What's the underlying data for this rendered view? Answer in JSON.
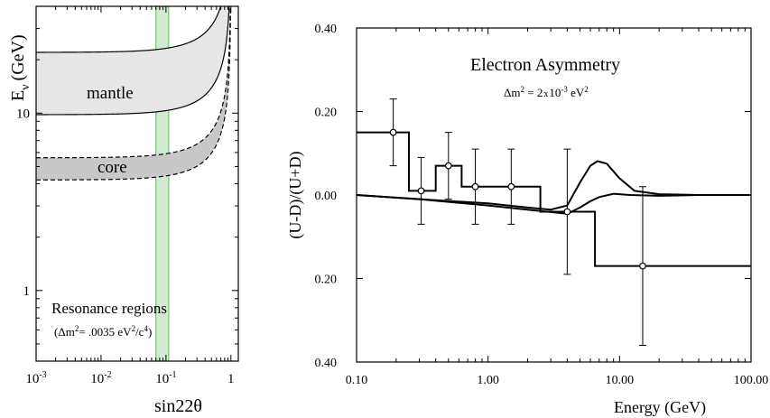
{
  "chart_data": [
    {
      "type": "area",
      "xlabel": "sin22θ",
      "ylabel_main": "E",
      "ylabel_sub": "ν",
      "ylabel_unit": "(GeV)",
      "xscale": "log",
      "yscale": "log",
      "xlim": [
        0.001,
        1.3
      ],
      "ylim": [
        0.4,
        40
      ],
      "x_ticks": [
        {
          "value": 0.001,
          "mantissa": "10",
          "exp": "-3"
        },
        {
          "value": 0.01,
          "mantissa": "10",
          "exp": "-2"
        },
        {
          "value": 0.1,
          "mantissa": "10",
          "exp": "-1"
        },
        {
          "value": 1,
          "mantissa": "1",
          "exp": ""
        }
      ],
      "y_ticks": [
        {
          "value": 1,
          "label": "1"
        },
        {
          "value": 10,
          "label": "10"
        }
      ],
      "bands": [
        {
          "name": "mantle",
          "upper_plateau": 22,
          "lower_plateau": 9.8,
          "style": "solid",
          "fill": "#e6e6e6"
        },
        {
          "name": "core",
          "upper_plateau": 5.6,
          "lower_plateau": 4.2,
          "style": "dashed",
          "fill": "#c8c8c8"
        }
      ],
      "highlight": {
        "x_from": 0.07,
        "x_to": 0.11,
        "color": "#7dc47d"
      },
      "annotation_title": "Resonance regions",
      "annotation_formula": {
        "open": "(Δm",
        "sup1": "2",
        "mid": "= .0035 eV",
        "sup2": "2",
        "div": "/c",
        "sup3": "4",
        "close": ")"
      }
    },
    {
      "type": "line",
      "title": "Electron Asymmetry",
      "subtitle": {
        "lead": "Δm",
        "sup1": "2",
        "mid": " = 2",
        "times": "x",
        "mant": "10",
        "sup2": "-3",
        "unit": " eV",
        "sup3": "2"
      },
      "xlabel": "Energy (GeV)",
      "ylabel": "(U-D)/(U+D)",
      "xscale": "log",
      "xlim": [
        0.1,
        100
      ],
      "ylim": [
        -0.4,
        0.4
      ],
      "x_ticks": [
        {
          "value": 0.1,
          "label": "0.10"
        },
        {
          "value": 1,
          "label": "1.00"
        },
        {
          "value": 10,
          "label": "10.00"
        },
        {
          "value": 100,
          "label": "100.00"
        }
      ],
      "y_ticks": [
        {
          "value": 0.4,
          "label": "0.40"
        },
        {
          "value": 0.2,
          "label": "0.20"
        },
        {
          "value": 0.0,
          "label": "0.00"
        },
        {
          "value": -0.2,
          "label": "0.20"
        },
        {
          "value": -0.4,
          "label": "0.40"
        }
      ],
      "points": [
        {
          "x": 0.19,
          "y": 0.15,
          "err": 0.08
        },
        {
          "x": 0.31,
          "y": 0.01,
          "err": 0.08
        },
        {
          "x": 0.5,
          "y": 0.07,
          "err": 0.08
        },
        {
          "x": 0.8,
          "y": 0.02,
          "err": 0.09
        },
        {
          "x": 1.5,
          "y": 0.02,
          "err": 0.09
        },
        {
          "x": 4.0,
          "y": -0.04,
          "err": 0.15
        },
        {
          "x": 15.0,
          "y": -0.17,
          "err": 0.19
        }
      ],
      "step_histogram": [
        {
          "x0": 0.1,
          "x1": 0.25,
          "y": 0.15
        },
        {
          "x0": 0.25,
          "x1": 0.4,
          "y": 0.01
        },
        {
          "x0": 0.4,
          "x1": 0.63,
          "y": 0.07
        },
        {
          "x0": 0.63,
          "x1": 1.0,
          "y": 0.02
        },
        {
          "x0": 1.0,
          "x1": 2.5,
          "y": 0.02
        },
        {
          "x0": 2.5,
          "x1": 6.5,
          "y": -0.04
        },
        {
          "x0": 6.5,
          "x1": 100,
          "y": -0.17
        }
      ],
      "curves": [
        {
          "name": "",
          "points": [
            [
              0.1,
              0.0
            ],
            [
              0.3,
              -0.01
            ],
            [
              1,
              -0.02
            ],
            [
              2,
              -0.03
            ],
            [
              3,
              -0.035
            ],
            [
              4,
              -0.025
            ],
            [
              5,
              0.03
            ],
            [
              6,
              0.07
            ],
            [
              6.8,
              0.081
            ],
            [
              8,
              0.075
            ],
            [
              10,
              0.04
            ],
            [
              13,
              0.01
            ],
            [
              20,
              0.002
            ],
            [
              40,
              0.0
            ],
            [
              100,
              0.0
            ]
          ]
        },
        {
          "name": "",
          "points": [
            [
              0.1,
              0.0
            ],
            [
              0.3,
              -0.01
            ],
            [
              1,
              -0.025
            ],
            [
              2,
              -0.035
            ],
            [
              4,
              -0.045
            ],
            [
              5,
              -0.03
            ],
            [
              6,
              -0.015
            ],
            [
              7,
              -0.005
            ],
            [
              9,
              0.003
            ],
            [
              12,
              0.0
            ],
            [
              20,
              -0.002
            ],
            [
              40,
              0.0
            ],
            [
              100,
              0.0
            ]
          ]
        }
      ]
    }
  ]
}
